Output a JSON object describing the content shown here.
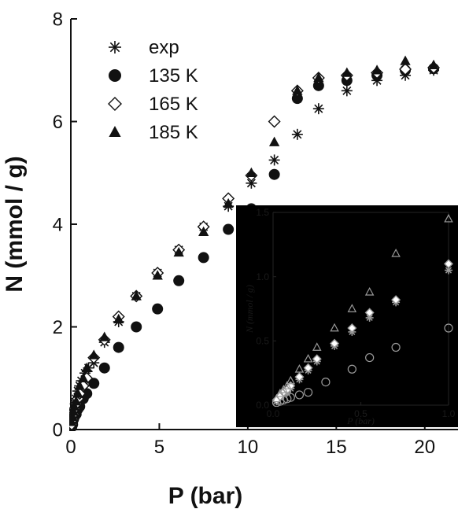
{
  "chart_data": [
    {
      "type": "scatter",
      "xlabel": "P (bar)",
      "ylabel": "N (mmol / g)",
      "xlim": [
        0,
        22.5
      ],
      "ylim": [
        0,
        8
      ],
      "xticks": [
        0,
        5,
        10,
        15,
        20
      ],
      "yticks": [
        0,
        2,
        4,
        6,
        8
      ],
      "xtick_labels": [
        "0",
        "5",
        "10",
        "15",
        "20"
      ],
      "ytick_labels": [
        "0",
        "2",
        "4",
        "6",
        "8"
      ],
      "legend": {
        "position": "top-left"
      },
      "series": [
        {
          "name": "exp",
          "marker": "asterisk",
          "color": "#111111",
          "x": [
            0.05,
            0.1,
            0.15,
            0.2,
            0.25,
            0.3,
            0.4,
            0.5,
            0.6,
            0.8,
            1.0,
            1.3,
            1.9,
            2.7,
            3.7,
            4.9,
            6.1,
            7.5,
            8.9,
            10.2,
            11.5,
            12.8,
            14.0,
            15.6,
            17.3,
            18.9,
            20.5
          ],
          "y": [
            0.1,
            0.2,
            0.3,
            0.4,
            0.5,
            0.6,
            0.75,
            0.85,
            0.95,
            1.1,
            1.2,
            1.3,
            1.7,
            2.1,
            2.6,
            3.05,
            3.5,
            3.95,
            4.35,
            4.8,
            5.25,
            5.75,
            6.25,
            6.6,
            6.8,
            6.9,
            7.0
          ]
        },
        {
          "name": "135 K",
          "marker": "filled-circle",
          "color": "#111111",
          "x": [
            0.05,
            0.1,
            0.15,
            0.2,
            0.3,
            0.4,
            0.5,
            0.7,
            0.9,
            1.3,
            1.9,
            2.7,
            3.7,
            4.9,
            6.1,
            7.5,
            8.9,
            10.2,
            11.5,
            12.8,
            14.0,
            15.6,
            17.3,
            18.9,
            20.5
          ],
          "y": [
            0.05,
            0.1,
            0.2,
            0.25,
            0.3,
            0.4,
            0.45,
            0.6,
            0.7,
            0.9,
            1.2,
            1.6,
            2.0,
            2.35,
            2.9,
            3.35,
            3.9,
            4.3,
            4.97,
            6.45,
            6.7,
            6.8,
            6.9,
            7.0,
            7.03
          ]
        },
        {
          "name": "165 K",
          "marker": "open-diamond",
          "color": "#111111",
          "x": [
            0.05,
            0.1,
            0.15,
            0.2,
            0.3,
            0.4,
            0.5,
            0.7,
            0.9,
            1.3,
            1.9,
            2.7,
            3.7,
            4.9,
            6.1,
            7.5,
            8.9,
            10.2,
            11.5,
            12.8,
            14.0,
            15.6,
            17.3,
            18.9,
            20.5
          ],
          "y": [
            0.1,
            0.2,
            0.3,
            0.4,
            0.5,
            0.6,
            0.7,
            0.85,
            1.0,
            1.4,
            1.75,
            2.2,
            2.6,
            3.05,
            3.5,
            3.95,
            4.5,
            4.95,
            6.0,
            6.6,
            6.85,
            6.9,
            6.95,
            7.02,
            7.05
          ]
        },
        {
          "name": "185 K",
          "marker": "filled-triangle",
          "color": "#111111",
          "x": [
            0.05,
            0.1,
            0.15,
            0.2,
            0.3,
            0.4,
            0.5,
            0.7,
            0.9,
            1.3,
            1.9,
            2.7,
            3.7,
            4.9,
            6.1,
            7.5,
            8.9,
            10.2,
            11.5,
            12.8,
            14.0,
            15.6,
            17.3,
            18.9,
            20.5
          ],
          "y": [
            0.15,
            0.25,
            0.35,
            0.45,
            0.55,
            0.7,
            0.85,
            1.0,
            1.2,
            1.45,
            1.8,
            2.15,
            2.6,
            3.0,
            3.45,
            3.85,
            4.4,
            5.0,
            5.6,
            6.6,
            6.85,
            6.95,
            7.0,
            7.18,
            7.1
          ]
        }
      ]
    },
    {
      "type": "scatter",
      "xlabel": "P (bar)",
      "ylabel": "N (mmol / g)",
      "xlim": [
        0,
        1.0
      ],
      "ylim": [
        0,
        1.5
      ],
      "xticks": [
        0,
        0.5,
        1.0
      ],
      "yticks": [
        0,
        0.5,
        1.0,
        1.5
      ],
      "xtick_labels": [
        "0.0",
        "0.5",
        "1.0"
      ],
      "ytick_labels": [
        "0.0",
        "0.5",
        "1.0",
        "1.5"
      ],
      "series": [
        {
          "name": "exp",
          "marker": "asterisk",
          "color": "#9a9a9a",
          "x": [
            0.02,
            0.04,
            0.06,
            0.08,
            0.1,
            0.15,
            0.2,
            0.25,
            0.35,
            0.45,
            0.55,
            0.7,
            1.0
          ],
          "y": [
            0.03,
            0.06,
            0.08,
            0.1,
            0.13,
            0.2,
            0.27,
            0.34,
            0.46,
            0.57,
            0.68,
            0.8,
            1.05
          ]
        },
        {
          "name": "135 K",
          "marker": "open-circle",
          "color": "#9a9a9a",
          "x": [
            0.02,
            0.04,
            0.06,
            0.08,
            0.1,
            0.15,
            0.2,
            0.3,
            0.45,
            0.55,
            0.7,
            1.0
          ],
          "y": [
            0.02,
            0.03,
            0.04,
            0.05,
            0.06,
            0.08,
            0.1,
            0.18,
            0.28,
            0.37,
            0.45,
            0.6
          ]
        },
        {
          "name": "165 K",
          "marker": "open-diamond",
          "color": "#9a9a9a",
          "x": [
            0.02,
            0.04,
            0.06,
            0.08,
            0.1,
            0.15,
            0.2,
            0.25,
            0.35,
            0.45,
            0.55,
            0.7,
            1.0
          ],
          "y": [
            0.04,
            0.07,
            0.1,
            0.12,
            0.15,
            0.22,
            0.29,
            0.36,
            0.48,
            0.6,
            0.72,
            0.82,
            1.1
          ]
        },
        {
          "name": "185 K",
          "marker": "open-triangle",
          "color": "#9a9a9a",
          "x": [
            0.02,
            0.04,
            0.06,
            0.08,
            0.1,
            0.15,
            0.2,
            0.25,
            0.35,
            0.45,
            0.55,
            0.7,
            1.0
          ],
          "y": [
            0.05,
            0.09,
            0.12,
            0.15,
            0.19,
            0.28,
            0.36,
            0.45,
            0.6,
            0.75,
            0.88,
            1.18,
            1.45
          ]
        }
      ]
    }
  ]
}
